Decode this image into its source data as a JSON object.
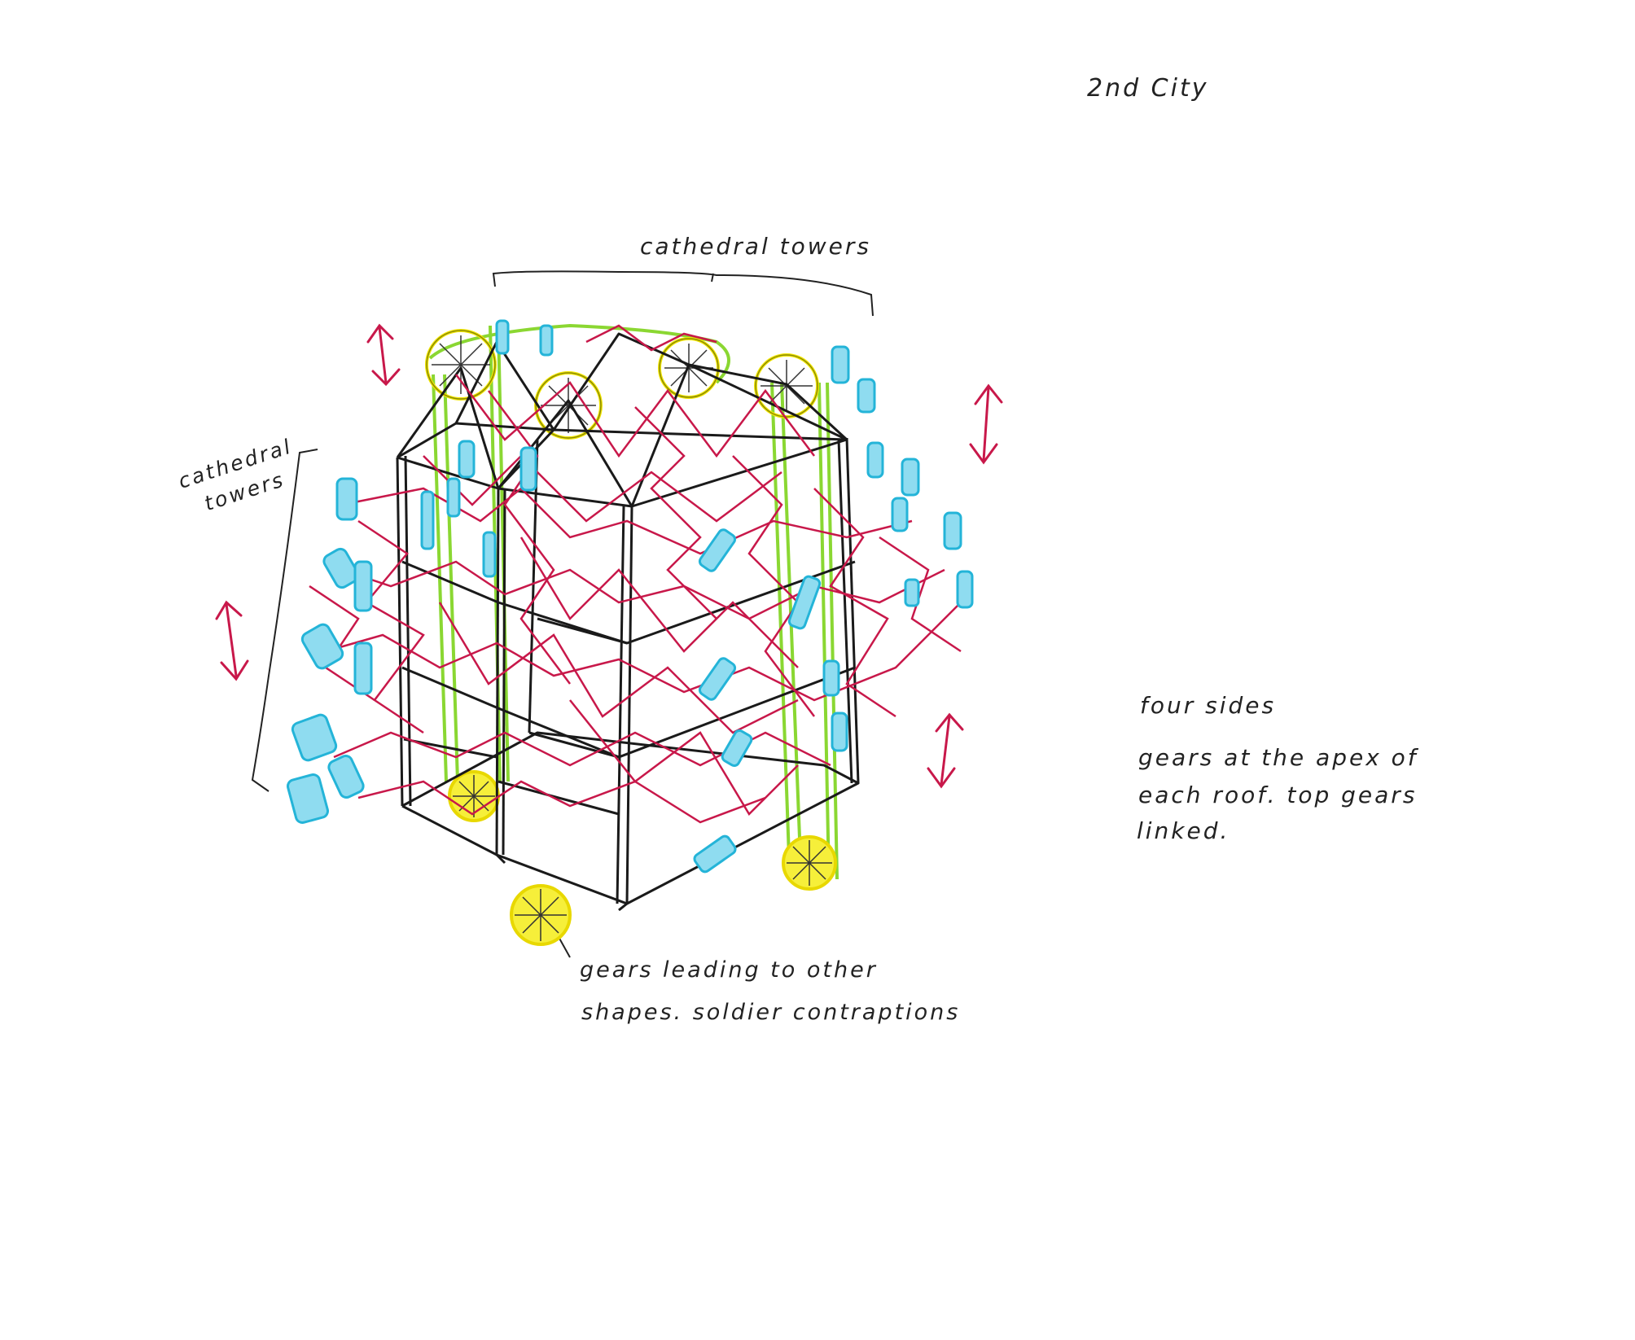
{
  "notes": {
    "title": "2nd City",
    "top_label": "cathedral towers",
    "left_label_line1": "cathedral",
    "left_label_line2": "towers",
    "right_note_line1": "four sides",
    "right_note_line2": "gears at the apex of",
    "right_note_line3": "each roof.  top gears",
    "right_note_line4": "linked.",
    "bottom_note_line1": "gears leading to other",
    "bottom_note_line2": "shapes.  soldier contraptions"
  },
  "colors": {
    "ink": "#1a1a1a",
    "linkage": "#c8184a",
    "soldier": "#24b4d8",
    "gear": "#f2e600",
    "belt": "#7ed31c",
    "arrow": "#c8184a"
  }
}
